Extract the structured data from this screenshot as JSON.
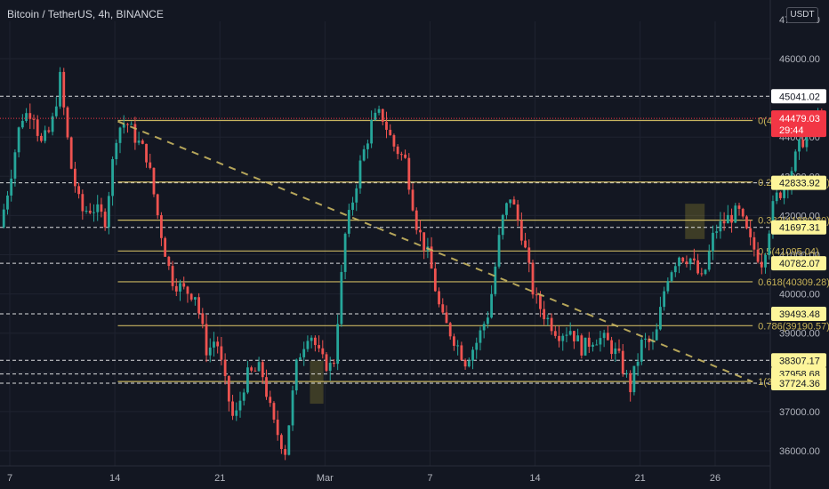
{
  "header": {
    "title": "Bitcoin / TetherUS, 4h, BINANCE",
    "currency": "USDT"
  },
  "colors": {
    "background": "#131722",
    "grid": "#1f2330",
    "axis_text": "#b2b5be",
    "bull": "#26a69a",
    "bear": "#ef5350",
    "fib": "#c8b560",
    "fib_label": "#c9b458",
    "dashed": "#ffffff",
    "trend": "#c8b560",
    "current_price": "#f23645",
    "highlight_box": "#ffeb3b"
  },
  "chart_data": {
    "type": "candlestick",
    "title": "Bitcoin / TetherUS, 4h, BINANCE",
    "ylim": [
      35600,
      47000
    ],
    "y_ticks": [
      36000,
      37000,
      38000,
      39000,
      40000,
      41000,
      42000,
      43000,
      44000,
      45000,
      46000,
      47000
    ],
    "y_tick_labels": [
      "36000.00",
      "37000.00",
      "38000.00",
      "39000.00",
      "40000.00",
      "41000.00",
      "42000.00",
      "43000.00",
      "44000.00",
      "45000.00",
      "46000.00",
      "47000.00"
    ],
    "x_ticks": [
      {
        "label": "7",
        "day": 7
      },
      {
        "label": "14",
        "day": 14
      },
      {
        "label": "21",
        "day": 21
      },
      {
        "label": "Mar",
        "day": 28
      },
      {
        "label": "7",
        "day": 35
      },
      {
        "label": "14",
        "day": 42
      },
      {
        "label": "21",
        "day": 49
      },
      {
        "label": "26",
        "day": 54
      }
    ],
    "x_range": [
      6.6,
      61.5
    ],
    "price_path": [
      [
        6.6,
        41700
      ],
      [
        7.2,
        42800
      ],
      [
        8.0,
        44500
      ],
      [
        8.8,
        44700
      ],
      [
        9.3,
        43800
      ],
      [
        10.0,
        44200
      ],
      [
        10.6,
        45500
      ],
      [
        11.3,
        43300
      ],
      [
        12.0,
        42100
      ],
      [
        12.8,
        42200
      ],
      [
        13.6,
        41900
      ],
      [
        14.4,
        44200
      ],
      [
        15.0,
        44400
      ],
      [
        15.6,
        44000
      ],
      [
        16.4,
        43500
      ],
      [
        17.2,
        41800
      ],
      [
        18.0,
        40400
      ],
      [
        18.8,
        40100
      ],
      [
        19.6,
        40000
      ],
      [
        20.4,
        38500
      ],
      [
        21.0,
        38900
      ],
      [
        21.6,
        37700
      ],
      [
        22.2,
        36700
      ],
      [
        23.0,
        37900
      ],
      [
        24.0,
        38100
      ],
      [
        24.8,
        36700
      ],
      [
        25.6,
        36000
      ],
      [
        26.4,
        38300
      ],
      [
        27.2,
        39100
      ],
      [
        28.0,
        38300
      ],
      [
        28.8,
        38100
      ],
      [
        29.6,
        41500
      ],
      [
        30.6,
        43300
      ],
      [
        31.4,
        44400
      ],
      [
        32.0,
        44600
      ],
      [
        32.8,
        43800
      ],
      [
        33.6,
        43400
      ],
      [
        34.4,
        41700
      ],
      [
        35.2,
        40900
      ],
      [
        36.0,
        39400
      ],
      [
        36.8,
        38900
      ],
      [
        37.6,
        38300
      ],
      [
        38.4,
        38800
      ],
      [
        39.2,
        39600
      ],
      [
        40.0,
        41800
      ],
      [
        40.6,
        42500
      ],
      [
        41.4,
        41500
      ],
      [
        42.2,
        39900
      ],
      [
        43.0,
        39400
      ],
      [
        43.8,
        39000
      ],
      [
        44.6,
        39100
      ],
      [
        45.4,
        38600
      ],
      [
        46.2,
        38900
      ],
      [
        47.0,
        38800
      ],
      [
        47.8,
        38400
      ],
      [
        48.6,
        37600
      ],
      [
        49.4,
        38800
      ],
      [
        50.2,
        38700
      ],
      [
        51.0,
        40400
      ],
      [
        51.8,
        41000
      ],
      [
        52.6,
        40900
      ],
      [
        53.4,
        40300
      ],
      [
        54.2,
        41600
      ],
      [
        55.0,
        41900
      ],
      [
        55.8,
        42100
      ],
      [
        56.6,
        41300
      ],
      [
        57.4,
        40800
      ],
      [
        58.2,
        42400
      ],
      [
        59.0,
        42800
      ],
      [
        59.8,
        43700
      ],
      [
        60.6,
        44300
      ],
      [
        61.3,
        44479
      ]
    ],
    "horizontal_levels": [
      {
        "price": 45041.02,
        "label": "45041.02",
        "style": "dashed"
      },
      {
        "price": 42833.92,
        "label": "42833.92",
        "style": "dashed"
      },
      {
        "price": 41697.31,
        "label": "41697.31",
        "style": "dashed"
      },
      {
        "price": 40782.07,
        "label": "40782.07",
        "style": "dashed"
      },
      {
        "price": 39493.48,
        "label": "39493.48",
        "style": "dashed"
      },
      {
        "price": 38307.17,
        "label": "38307.17",
        "style": "dashed"
      },
      {
        "price": 37958.68,
        "label": "37958.68",
        "style": "dashed"
      },
      {
        "price": 37724.36,
        "label": "37724.36",
        "style": "dashed"
      }
    ],
    "fib_levels": [
      {
        "price": 44424.52,
        "label": "0(44424.52)"
      },
      {
        "price": 42853.01,
        "label": "0.236(42853.01)"
      },
      {
        "price": 41880.8,
        "label": "0.382(41880.80)"
      },
      {
        "price": 41095.04,
        "label": "0.5(41095.04)"
      },
      {
        "price": 40309.28,
        "label": "0.618(40309.28)"
      },
      {
        "price": 39190.57,
        "label": "0.786(39190.57)"
      },
      {
        "price": 37765.55,
        "label": "1(37765.55)"
      }
    ],
    "fib_x_range": [
      14.2,
      56.5
    ],
    "trendline": {
      "from": [
        14.2,
        44400
      ],
      "to": [
        56.5,
        37760
      ]
    },
    "current_price": {
      "price": 44479.03,
      "label": "44479.03",
      "countdown": "29:44"
    },
    "highlight_boxes": [
      {
        "x0": 27.0,
        "x1": 27.9,
        "y0": 38300,
        "y1": 37200
      },
      {
        "x0": 52.0,
        "x1": 53.3,
        "y0": 42300,
        "y1": 41400
      }
    ]
  }
}
